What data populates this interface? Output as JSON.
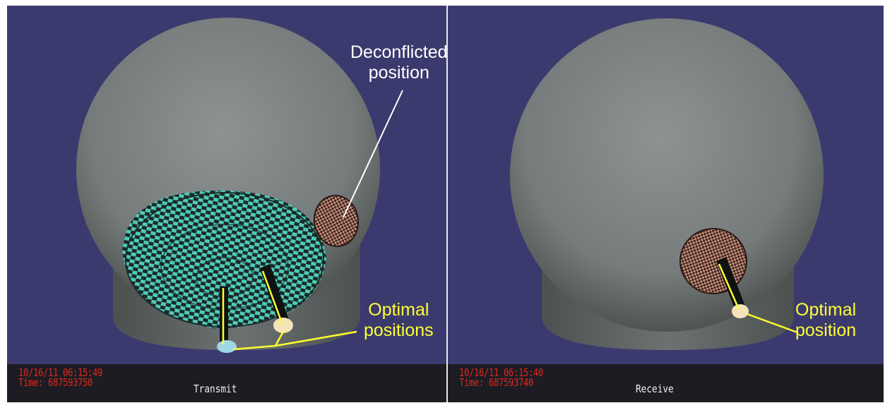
{
  "left_view": {
    "stamp_date": "10/16/11 06:15:49",
    "stamp_time": "Time: 687593750",
    "label": "Transmit",
    "annotation_top": [
      "Deconflicted",
      "position"
    ],
    "annotation_bottom": [
      "Optimal",
      "positions"
    ]
  },
  "right_view": {
    "stamp_date": "10/16/11 06:15:40",
    "stamp_time": "Time: 687593740",
    "label": "Receive",
    "annotation_bottom": [
      "Optimal",
      "position"
    ]
  },
  "colors": {
    "background": "#3b3a6e",
    "sphere": "#7f8584",
    "dish_pattern": "#4fc9b7",
    "deconflicted_dish": "#c88d78",
    "status_text": "#e0261d",
    "annotation_yellow": "#ffff33",
    "annotation_white": "#ffffff"
  }
}
